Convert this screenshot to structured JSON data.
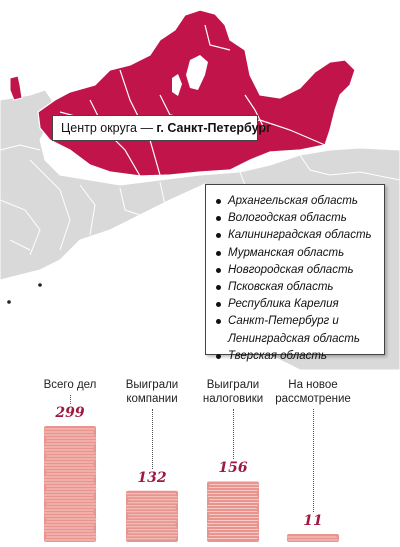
{
  "colors": {
    "highlight_region": "#c0144b",
    "background_region": "#d9d9d9",
    "region_border": "#ffffff",
    "bar_stack": "#e9958f",
    "bar_line": "#f6c9c4",
    "value_text": "#a01840"
  },
  "map": {
    "center_prefix": "Центр округа — ",
    "center_city": "г. Санкт-Петербург",
    "regions": [
      "Архангельская область",
      "Вологодская область",
      "Калининградская область",
      "Мурманская область",
      "Новгородская область",
      "Псковская область",
      "Республика Карелия",
      "Санкт-Петербург и\nЛенинградская область",
      "Тверская область"
    ]
  },
  "chart_data": {
    "type": "bar",
    "categories": [
      "Всего дел",
      "Выиграли компании",
      "Выиграли налоговики",
      "На новое рассмотрение"
    ],
    "values": [
      299,
      132,
      156,
      11
    ],
    "ylim": [
      0,
      299
    ],
    "grid": false,
    "category_display": [
      [
        "Всего дел"
      ],
      [
        "Выиграли",
        "компании"
      ],
      [
        "Выиграли",
        "налоговики"
      ],
      [
        "На новое",
        "рассмотрение"
      ]
    ]
  }
}
